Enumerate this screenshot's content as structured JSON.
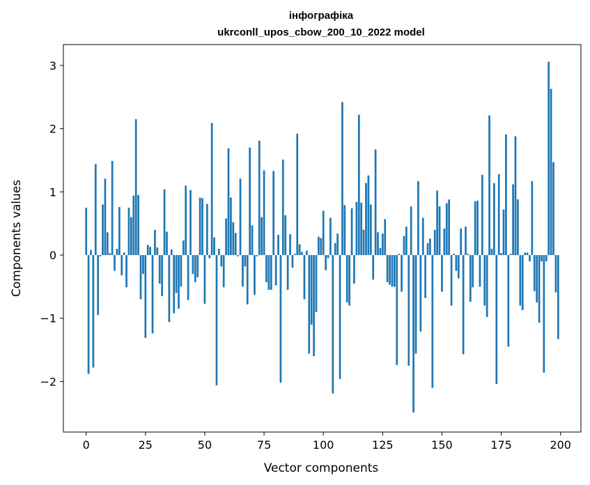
{
  "chart_data": {
    "type": "bar",
    "title": "інфографіка",
    "subtitle": "ukrconll_upos_cbow_200_10_2022 model",
    "xlabel": "Vector components",
    "ylabel": "Components values",
    "xlim": [
      -9.6,
      208.6
    ],
    "ylim": [
      -2.8,
      3.33
    ],
    "xticks": [
      0,
      25,
      50,
      75,
      100,
      125,
      150,
      175,
      200
    ],
    "xtick_labels": [
      "0",
      "25",
      "50",
      "75",
      "100",
      "125",
      "150",
      "175",
      "200"
    ],
    "yticks": [
      -2,
      -1,
      0,
      1,
      2,
      3
    ],
    "ytick_labels": [
      "−2",
      "−1",
      "0",
      "1",
      "2",
      "3"
    ],
    "grid": false,
    "bar_color": "#1f77b4",
    "x": [
      0,
      1,
      2,
      3,
      4,
      5,
      6,
      7,
      8,
      9,
      10,
      11,
      12,
      13,
      14,
      15,
      16,
      17,
      18,
      19,
      20,
      21,
      22,
      23,
      24,
      25,
      26,
      27,
      28,
      29,
      30,
      31,
      32,
      33,
      34,
      35,
      36,
      37,
      38,
      39,
      40,
      41,
      42,
      43,
      44,
      45,
      46,
      47,
      48,
      49,
      50,
      51,
      52,
      53,
      54,
      55,
      56,
      57,
      58,
      59,
      60,
      61,
      62,
      63,
      64,
      65,
      66,
      67,
      68,
      69,
      70,
      71,
      72,
      73,
      74,
      75,
      76,
      77,
      78,
      79,
      80,
      81,
      82,
      83,
      84,
      85,
      86,
      87,
      88,
      89,
      90,
      91,
      92,
      93,
      94,
      95,
      96,
      97,
      98,
      99,
      100,
      101,
      102,
      103,
      104,
      105,
      106,
      107,
      108,
      109,
      110,
      111,
      112,
      113,
      114,
      115,
      116,
      117,
      118,
      119,
      120,
      121,
      122,
      123,
      124,
      125,
      126,
      127,
      128,
      129,
      130,
      131,
      132,
      133,
      134,
      135,
      136,
      137,
      138,
      139,
      140,
      141,
      142,
      143,
      144,
      145,
      146,
      147,
      148,
      149,
      150,
      151,
      152,
      153,
      154,
      155,
      156,
      157,
      158,
      159,
      160,
      161,
      162,
      163,
      164,
      165,
      166,
      167,
      168,
      169,
      170,
      171,
      172,
      173,
      174,
      175,
      176,
      177,
      178,
      179,
      180,
      181,
      182,
      183,
      184,
      185,
      186,
      187,
      188,
      189,
      190,
      191,
      192,
      193,
      194,
      195,
      196,
      197,
      198,
      199
    ],
    "values": [
      0.75,
      -1.88,
      0.08,
      -1.78,
      1.44,
      -0.95,
      -0.02,
      0.8,
      1.21,
      0.36,
      0.03,
      1.49,
      -0.25,
      0.1,
      0.76,
      -0.32,
      0.04,
      -0.51,
      0.75,
      0.6,
      0.94,
      2.15,
      0.95,
      -0.7,
      -0.3,
      -1.31,
      0.16,
      0.13,
      -1.24,
      0.4,
      0.12,
      -0.45,
      -0.65,
      1.04,
      0.37,
      -1.06,
      0.09,
      -0.92,
      -0.6,
      -0.85,
      -0.5,
      0.23,
      1.1,
      -0.71,
      1.03,
      -0.3,
      -0.43,
      -0.35,
      0.91,
      0.9,
      -0.77,
      0.81,
      -0.05,
      2.09,
      0.28,
      -2.06,
      0.1,
      -0.18,
      -0.51,
      0.58,
      1.69,
      0.91,
      0.52,
      0.35,
      -0.02,
      1.21,
      -0.5,
      -0.18,
      -0.78,
      1.7,
      0.47,
      -0.63,
      -0.02,
      1.81,
      0.6,
      1.34,
      -0.43,
      -0.55,
      -0.55,
      1.33,
      -0.48,
      0.32,
      -2.02,
      1.51,
      0.63,
      -0.55,
      0.33,
      -0.2,
      0.02,
      1.92,
      0.17,
      0.05,
      -0.7,
      0.07,
      -1.56,
      -1.1,
      -1.6,
      -0.9,
      0.29,
      0.27,
      0.7,
      -0.24,
      -0.05,
      0.59,
      -2.19,
      0.19,
      0.34,
      -1.96,
      2.42,
      0.79,
      -0.75,
      -0.8,
      0.74,
      -0.45,
      0.84,
      2.22,
      0.83,
      0.4,
      1.14,
      1.26,
      0.8,
      -0.39,
      1.67,
      0.36,
      0.11,
      0.34,
      0.57,
      -0.43,
      -0.47,
      -0.5,
      -0.5,
      -1.74,
      0.02,
      -0.58,
      0.3,
      0.45,
      -1.75,
      0.77,
      -2.49,
      -1.56,
      1.17,
      -1.21,
      0.59,
      -0.68,
      0.19,
      0.26,
      -2.1,
      0.4,
      1.02,
      0.77,
      -0.58,
      0.42,
      0.82,
      0.88,
      -0.8,
      0.02,
      -0.25,
      -0.37,
      0.42,
      -1.57,
      0.45,
      0.02,
      -0.74,
      -0.51,
      0.85,
      0.86,
      -0.5,
      1.27,
      -0.8,
      -0.98,
      2.21,
      0.1,
      1.14,
      -2.04,
      1.28,
      0.03,
      0.72,
      1.91,
      -1.45,
      0.02,
      1.12,
      1.88,
      0.88,
      -0.8,
      -0.87,
      0.04,
      0.04,
      -0.1,
      1.17,
      -0.57,
      -0.75,
      -1.07,
      -0.1,
      -1.86,
      -0.1,
      3.06,
      2.63,
      1.47,
      -0.59,
      -1.33
    ]
  }
}
